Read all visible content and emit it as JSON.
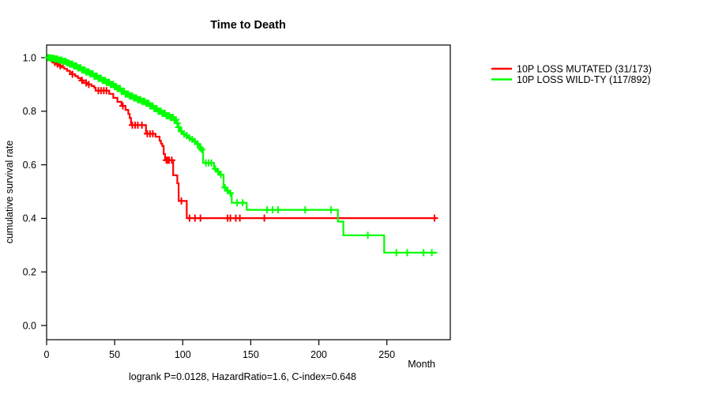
{
  "title": "Time to Death",
  "x_axis": {
    "label": "Month",
    "ticks": [
      0,
      50,
      100,
      150,
      200,
      250
    ]
  },
  "y_axis": {
    "label": "cumulative survival rate",
    "ticks": [
      0.0,
      0.2,
      0.4,
      0.6,
      0.8,
      1.0
    ]
  },
  "footnote": "logrank P=0.0128, HazardRatio=1.6, C-index=0.648",
  "chart_data": {
    "type": "line",
    "subtype": "kaplan-meier-step",
    "title": "Time to Death",
    "xlabel": "Month",
    "ylabel": "cumulative survival rate",
    "xlim": [
      0,
      296
    ],
    "ylim": [
      0,
      1.04
    ],
    "grid": false,
    "legend_position": "outside-top-right",
    "series": [
      {
        "name": "10P LOSS MUTATED (31/173)",
        "color": "#ff0000",
        "end_month": 287,
        "steps": [
          [
            0,
            1.0
          ],
          [
            2,
            0.994
          ],
          [
            4,
            0.988
          ],
          [
            5,
            0.982
          ],
          [
            7,
            0.976
          ],
          [
            9,
            0.97
          ],
          [
            11,
            0.964
          ],
          [
            13,
            0.958
          ],
          [
            15,
            0.951
          ],
          [
            17,
            0.945
          ],
          [
            19,
            0.938
          ],
          [
            21,
            0.931
          ],
          [
            23,
            0.924
          ],
          [
            25,
            0.915
          ],
          [
            27,
            0.906
          ],
          [
            30,
            0.9
          ],
          [
            33,
            0.894
          ],
          [
            35,
            0.888
          ],
          [
            36,
            0.877
          ],
          [
            46,
            0.865
          ],
          [
            49,
            0.85
          ],
          [
            52,
            0.835
          ],
          [
            55,
            0.82
          ],
          [
            58,
            0.805
          ],
          [
            60,
            0.79
          ],
          [
            61,
            0.775
          ],
          [
            62,
            0.748
          ],
          [
            73,
            0.716
          ],
          [
            80,
            0.705
          ],
          [
            83,
            0.69
          ],
          [
            84,
            0.679
          ],
          [
            85,
            0.67
          ],
          [
            86,
            0.64
          ],
          [
            87,
            0.617
          ],
          [
            93,
            0.561
          ],
          [
            96,
            0.531
          ],
          [
            97,
            0.465
          ],
          [
            103,
            0.401
          ]
        ],
        "censors": [
          6,
          8,
          10,
          19,
          26,
          29,
          31,
          38,
          40,
          42,
          44,
          56,
          63,
          65,
          67,
          70,
          74,
          76,
          78,
          88,
          89,
          90,
          92,
          99,
          105,
          109,
          113,
          133,
          135,
          139,
          142,
          160,
          285
        ]
      },
      {
        "name": "10P LOSS WILD-TY (117/892)",
        "color": "#00ff00",
        "end_month": 287,
        "steps": [
          [
            0,
            1.0
          ],
          [
            3,
            0.998
          ],
          [
            6,
            0.995
          ],
          [
            9,
            0.991
          ],
          [
            12,
            0.986
          ],
          [
            15,
            0.981
          ],
          [
            17,
            0.976
          ],
          [
            20,
            0.969
          ],
          [
            23,
            0.962
          ],
          [
            26,
            0.954
          ],
          [
            29,
            0.947
          ],
          [
            32,
            0.94
          ],
          [
            35,
            0.931
          ],
          [
            38,
            0.923
          ],
          [
            41,
            0.915
          ],
          [
            44,
            0.908
          ],
          [
            47,
            0.9
          ],
          [
            50,
            0.892
          ],
          [
            52,
            0.885
          ],
          [
            55,
            0.874
          ],
          [
            58,
            0.864
          ],
          [
            61,
            0.857
          ],
          [
            64,
            0.85
          ],
          [
            67,
            0.843
          ],
          [
            70,
            0.837
          ],
          [
            73,
            0.83
          ],
          [
            76,
            0.82
          ],
          [
            79,
            0.81
          ],
          [
            82,
            0.8
          ],
          [
            85,
            0.792
          ],
          [
            88,
            0.783
          ],
          [
            91,
            0.777
          ],
          [
            94,
            0.768
          ],
          [
            96,
            0.755
          ],
          [
            97,
            0.74
          ],
          [
            98,
            0.725
          ],
          [
            100,
            0.715
          ],
          [
            102,
            0.709
          ],
          [
            104,
            0.7
          ],
          [
            106,
            0.695
          ],
          [
            108,
            0.687
          ],
          [
            110,
            0.678
          ],
          [
            112,
            0.67
          ],
          [
            113,
            0.663
          ],
          [
            114,
            0.657
          ],
          [
            115,
            0.607
          ],
          [
            123,
            0.585
          ],
          [
            125,
            0.575
          ],
          [
            127,
            0.563
          ],
          [
            130,
            0.515
          ],
          [
            132,
            0.503
          ],
          [
            134,
            0.494
          ],
          [
            136,
            0.458
          ],
          [
            147,
            0.432
          ],
          [
            214,
            0.388
          ],
          [
            218,
            0.337
          ],
          [
            248,
            0.272
          ]
        ],
        "censors": [
          1,
          2,
          3,
          4,
          5,
          6,
          7,
          8,
          9,
          10,
          11,
          12,
          13,
          14,
          15,
          16,
          17,
          18,
          19,
          20,
          21,
          22,
          23,
          24,
          25,
          26,
          27,
          28,
          29,
          30,
          31,
          32,
          33,
          34,
          35,
          36,
          37,
          38,
          39,
          40,
          41,
          42,
          43,
          44,
          45,
          46,
          47,
          48,
          49,
          50,
          51,
          52,
          53,
          54,
          55,
          56,
          57,
          58,
          59,
          60,
          61,
          62,
          63,
          64,
          65,
          66,
          67,
          68,
          69,
          70,
          71,
          72,
          73,
          74,
          75,
          76,
          77,
          78,
          79,
          80,
          81,
          82,
          83,
          84,
          85,
          86,
          87,
          88,
          89,
          90,
          91,
          92,
          93,
          94,
          95,
          96,
          97,
          99,
          101,
          103,
          105,
          107,
          109,
          111,
          113,
          114,
          117,
          119,
          121,
          124,
          126,
          128,
          131,
          133,
          135,
          140,
          144,
          162,
          166,
          170,
          190,
          209,
          236,
          257,
          265,
          277,
          283
        ]
      }
    ]
  }
}
